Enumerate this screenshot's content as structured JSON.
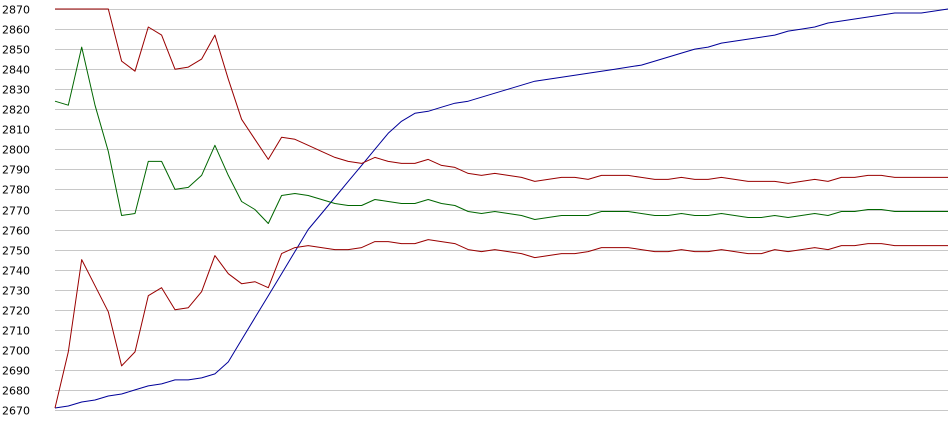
{
  "chart_data": {
    "type": "line",
    "title": "",
    "xlabel": "",
    "ylabel": "",
    "grid": true,
    "legend": "none",
    "ylim": [
      2670,
      2870
    ],
    "yticks": [
      2670,
      2680,
      2690,
      2700,
      2710,
      2720,
      2730,
      2740,
      2750,
      2760,
      2770,
      2780,
      2790,
      2800,
      2810,
      2820,
      2830,
      2840,
      2850,
      2860,
      2870
    ],
    "x": [
      0,
      1,
      2,
      3,
      4,
      5,
      6,
      7,
      8,
      9,
      10,
      11,
      12,
      13,
      14,
      15,
      16,
      17,
      18,
      19,
      20,
      21,
      22,
      23,
      24,
      25,
      26,
      27,
      28,
      29,
      30,
      31,
      32,
      33,
      34,
      35,
      36,
      37,
      38,
      39,
      40,
      41,
      42,
      43,
      44,
      45,
      46,
      47,
      48,
      49,
      50,
      51,
      52,
      53,
      54,
      55,
      56,
      57,
      58,
      59,
      60,
      61,
      62,
      63,
      64,
      65,
      66,
      67,
      68,
      69,
      70,
      71,
      72,
      73,
      74,
      75,
      76,
      77,
      78,
      79,
      80,
      81,
      82,
      83,
      84,
      85,
      86,
      87,
      88,
      89,
      90,
      91,
      92,
      93,
      94,
      95,
      96,
      97,
      98,
      99,
      100
    ],
    "xlim": [
      0,
      100
    ],
    "series": [
      {
        "color": "#000099",
        "values": [
          2671,
          2672,
          2674,
          2675,
          2677,
          2678,
          2680,
          2682,
          2683,
          2685,
          2685,
          2686,
          2688,
          2694,
          2705,
          2716,
          2727,
          2738,
          2749,
          2760,
          2768,
          2776,
          2784,
          2792,
          2800,
          2808,
          2814,
          2818,
          2819,
          2821,
          2823,
          2824,
          2826,
          2828,
          2830,
          2832,
          2834,
          2835,
          2836,
          2837,
          2838,
          2839,
          2840,
          2841,
          2842,
          2844,
          2846,
          2848,
          2850,
          2851,
          2853,
          2854,
          2855,
          2856,
          2857,
          2859,
          2860,
          2861,
          2863,
          2864,
          2865,
          2866,
          2867,
          2868,
          2868,
          2868,
          2869,
          2870,
          2870,
          2870,
          2870,
          2870,
          2870,
          2870,
          2870,
          2870,
          2870,
          2870,
          2870,
          2870,
          2870,
          2870,
          2870,
          2870,
          2870,
          2870,
          2870,
          2870,
          2870,
          2870,
          2870,
          2870,
          2870,
          2870,
          2870,
          2870,
          2870,
          2870,
          2870,
          2870,
          2870
        ]
      },
      {
        "color": "#990000",
        "values": [
          2870,
          2870,
          2870,
          2870,
          2870,
          2844,
          2839,
          2861,
          2857,
          2840,
          2841,
          2845,
          2857,
          2835,
          2815,
          2805,
          2795,
          2806,
          2805,
          2802,
          2799,
          2796,
          2794,
          2793,
          2796,
          2794,
          2793,
          2793,
          2795,
          2792,
          2791,
          2788,
          2787,
          2788,
          2787,
          2786,
          2784,
          2785,
          2786,
          2786,
          2785,
          2787,
          2787,
          2787,
          2786,
          2785,
          2785,
          2786,
          2785,
          2785,
          2786,
          2785,
          2784,
          2784,
          2784,
          2783,
          2784,
          2785,
          2784,
          2786,
          2786,
          2787,
          2787,
          2786,
          2786,
          2786,
          2786,
          2786,
          2786,
          2786,
          2786,
          2786,
          2786,
          2786,
          2786,
          2786,
          2786,
          2786,
          2786,
          2786,
          2786,
          2786,
          2786,
          2786,
          2786,
          2786,
          2786,
          2786,
          2786,
          2786,
          2786,
          2786,
          2786,
          2786,
          2786,
          2786,
          2786,
          2786,
          2786,
          2786,
          2786
        ]
      },
      {
        "color": "#006600",
        "values": [
          2824,
          2822,
          2851,
          2822,
          2799,
          2767,
          2768,
          2794,
          2794,
          2780,
          2781,
          2787,
          2802,
          2787,
          2774,
          2770,
          2763,
          2777,
          2778,
          2777,
          2775,
          2773,
          2772,
          2772,
          2775,
          2774,
          2773,
          2773,
          2775,
          2773,
          2772,
          2769,
          2768,
          2769,
          2768,
          2767,
          2765,
          2766,
          2767,
          2767,
          2767,
          2769,
          2769,
          2769,
          2768,
          2767,
          2767,
          2768,
          2767,
          2767,
          2768,
          2767,
          2766,
          2766,
          2767,
          2766,
          2767,
          2768,
          2767,
          2769,
          2769,
          2770,
          2770,
          2769,
          2769,
          2769,
          2769,
          2769,
          2769,
          2769,
          2769,
          2769,
          2769,
          2769,
          2769,
          2769,
          2769,
          2769,
          2769,
          2769,
          2769,
          2769,
          2769,
          2769,
          2769,
          2769,
          2769,
          2769,
          2769,
          2769,
          2769,
          2769,
          2769,
          2769,
          2769,
          2769,
          2769,
          2769,
          2769,
          2769,
          2769
        ]
      },
      {
        "color": "#990000",
        "values": [
          2671,
          2699,
          2745,
          2732,
          2719,
          2692,
          2699,
          2727,
          2731,
          2720,
          2721,
          2729,
          2747,
          2738,
          2733,
          2734,
          2731,
          2748,
          2751,
          2752,
          2751,
          2750,
          2750,
          2751,
          2754,
          2754,
          2753,
          2753,
          2755,
          2754,
          2753,
          2750,
          2749,
          2750,
          2749,
          2748,
          2746,
          2747,
          2748,
          2748,
          2749,
          2751,
          2751,
          2751,
          2750,
          2749,
          2749,
          2750,
          2749,
          2749,
          2750,
          2749,
          2748,
          2748,
          2750,
          2749,
          2750,
          2751,
          2750,
          2752,
          2752,
          2753,
          2753,
          2752,
          2752,
          2752,
          2752,
          2752,
          2752,
          2752,
          2752,
          2752,
          2752,
          2752,
          2752,
          2752,
          2752,
          2752,
          2752,
          2752,
          2752,
          2752,
          2752,
          2752,
          2752,
          2752,
          2752,
          2752,
          2752,
          2752,
          2752,
          2752,
          2752,
          2752,
          2752,
          2752,
          2752,
          2752,
          2752,
          2752,
          2752
        ]
      }
    ]
  }
}
